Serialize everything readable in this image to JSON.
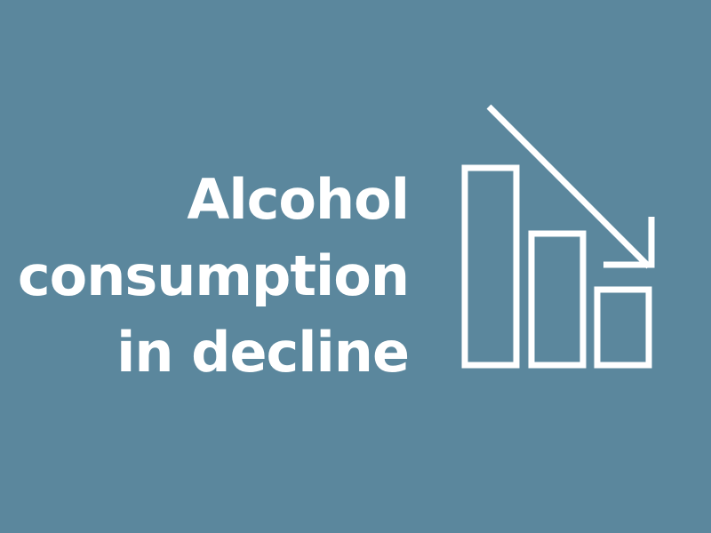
{
  "headline": {
    "line1": "Alcohol",
    "line2": "consumption",
    "line3": "in decline"
  },
  "colors": {
    "background": "#5b879d",
    "foreground": "#ffffff"
  },
  "icon": "declining-bar-chart-icon"
}
